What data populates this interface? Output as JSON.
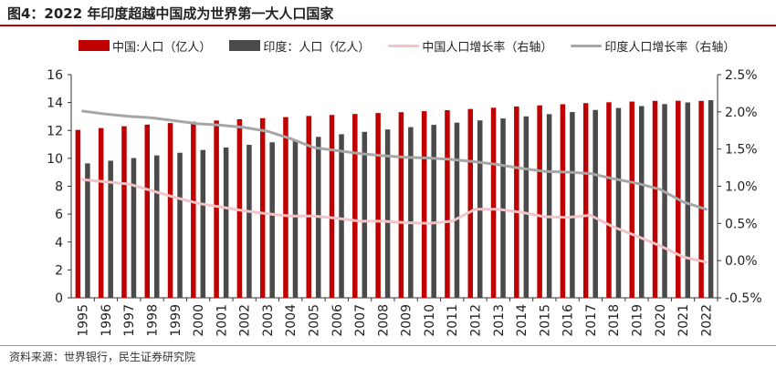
{
  "title": "图4：2022 年印度超越中国成为世界第一大人口国家",
  "source": "资料来源：世界银行，民生证券研究院",
  "colors": {
    "china_bar": "#c00000",
    "india_bar": "#4a4a4a",
    "china_line": "#f2c4c8",
    "india_line": "#a6a6a6",
    "accent_rule": "#b0000f"
  },
  "legend": [
    {
      "label": "中国:人口（亿人）",
      "kind": "bar",
      "color": "#c00000"
    },
    {
      "label": "印度：人口（亿人）",
      "kind": "bar",
      "color": "#4a4a4a"
    },
    {
      "label": "中国人口增长率（右轴）",
      "kind": "line",
      "color": "#f2c4c8"
    },
    {
      "label": "印度人口增长率（右轴）",
      "kind": "line",
      "color": "#a6a6a6"
    }
  ],
  "chart_data": {
    "type": "bar",
    "categories": [
      "1995",
      "1996",
      "1997",
      "1998",
      "1999",
      "2000",
      "2001",
      "2002",
      "2003",
      "2004",
      "2005",
      "2006",
      "2007",
      "2008",
      "2009",
      "2010",
      "2011",
      "2012",
      "2013",
      "2014",
      "2015",
      "2016",
      "2017",
      "2018",
      "2019",
      "2020",
      "2021",
      "2022"
    ],
    "y_left": {
      "ylim": [
        0,
        16
      ],
      "ticks": [
        "0",
        "2",
        "4",
        "6",
        "8",
        "10",
        "12",
        "14",
        "16"
      ]
    },
    "y_right": {
      "ylim": [
        -0.5,
        2.5
      ],
      "ticks": [
        "-0.5%",
        "0.0%",
        "0.5%",
        "1.0%",
        "1.5%",
        "2.0%",
        "2.5%"
      ]
    },
    "grid": false,
    "legend_position": "top",
    "series": [
      {
        "name": "中国:人口（亿人）",
        "kind": "bar",
        "axis": "left",
        "values": [
          12.04,
          12.17,
          12.3,
          12.42,
          12.53,
          12.63,
          12.71,
          12.8,
          12.88,
          12.96,
          13.04,
          13.11,
          13.18,
          13.25,
          13.31,
          13.38,
          13.45,
          13.54,
          13.63,
          13.72,
          13.8,
          13.88,
          13.96,
          14.02,
          14.07,
          14.12,
          14.13,
          14.12
        ]
      },
      {
        "name": "印度：人口（亿人）",
        "kind": "bar",
        "axis": "left",
        "values": [
          9.64,
          9.83,
          10.02,
          10.21,
          10.4,
          10.6,
          10.78,
          10.97,
          11.15,
          11.34,
          11.54,
          11.73,
          11.9,
          12.07,
          12.24,
          12.4,
          12.56,
          12.72,
          12.86,
          13.01,
          13.17,
          13.32,
          13.47,
          13.61,
          13.75,
          13.89,
          14.01,
          14.17
        ]
      },
      {
        "name": "中国人口增长率（右轴）",
        "kind": "line",
        "axis": "right",
        "values": [
          1.09,
          1.06,
          1.03,
          0.94,
          0.85,
          0.77,
          0.72,
          0.67,
          0.63,
          0.6,
          0.6,
          0.57,
          0.53,
          0.53,
          0.51,
          0.5,
          0.53,
          0.69,
          0.69,
          0.65,
          0.59,
          0.58,
          0.61,
          0.45,
          0.33,
          0.2,
          0.05,
          -0.02
        ]
      },
      {
        "name": "印度人口增长率（右轴）",
        "kind": "line",
        "axis": "right",
        "values": [
          2.01,
          1.97,
          1.94,
          1.92,
          1.88,
          1.84,
          1.82,
          1.79,
          1.74,
          1.64,
          1.52,
          1.48,
          1.44,
          1.41,
          1.39,
          1.38,
          1.36,
          1.33,
          1.29,
          1.24,
          1.2,
          1.19,
          1.17,
          1.1,
          1.04,
          0.96,
          0.79,
          0.69
        ]
      }
    ]
  }
}
